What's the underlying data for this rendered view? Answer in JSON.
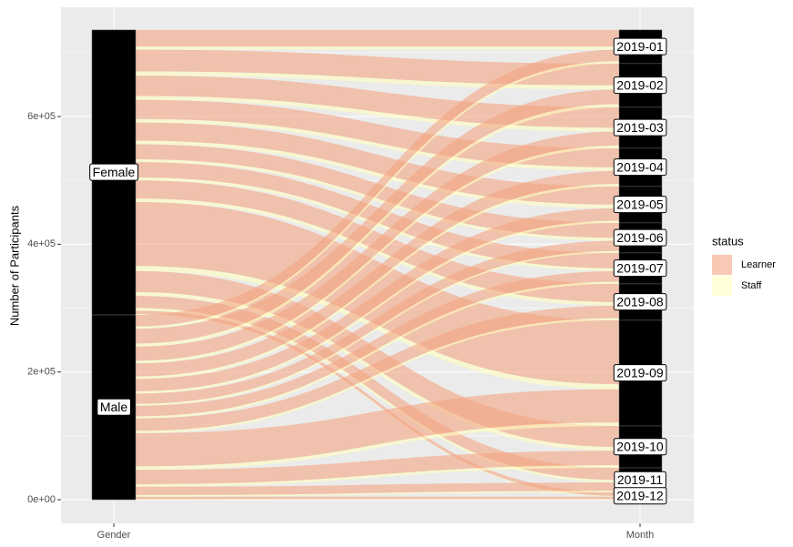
{
  "chart_data": {
    "type": "alluvial",
    "y_label": "Number of Participants",
    "legend_title": "status",
    "axes": [
      "Gender",
      "Month"
    ],
    "genders": [
      "Female",
      "Male"
    ],
    "months": [
      "2019-01",
      "2019-02",
      "2019-03",
      "2019-04",
      "2019-05",
      "2019-06",
      "2019-07",
      "2019-08",
      "2019-09",
      "2019-10",
      "2019-11",
      "2019-12"
    ],
    "series": [
      {
        "name": "Learner",
        "color": "#f4a582",
        "values": [
          [
            26000,
            34000,
            32000,
            30000,
            28500,
            23500,
            24000,
            28500,
            100000,
            33000,
            19000,
            5500
          ],
          [
            18000,
            23000,
            22000,
            20500,
            19500,
            16000,
            16500,
            19500,
            52000,
            22500,
            13000,
            3900
          ]
        ]
      },
      {
        "name": "Staff",
        "color": "#ffffbf",
        "values": [
          [
            5000,
            6500,
            6000,
            5500,
            5500,
            4500,
            4500,
            5500,
            8000,
            6000,
            4000,
            1200
          ],
          [
            3700,
            4900,
            4100,
            3900,
            3500,
            3000,
            3500,
            3500,
            5400,
            4100,
            2500,
            800
          ]
        ]
      }
    ],
    "ylim": [
      -37000,
      771000
    ],
    "yticks": [
      {
        "value": 0,
        "label": "0e+00"
      },
      {
        "value": 200000,
        "label": "2e+05"
      },
      {
        "value": 400000,
        "label": "4e+05"
      },
      {
        "value": 600000,
        "label": "6e+05"
      }
    ],
    "grid": true
  }
}
